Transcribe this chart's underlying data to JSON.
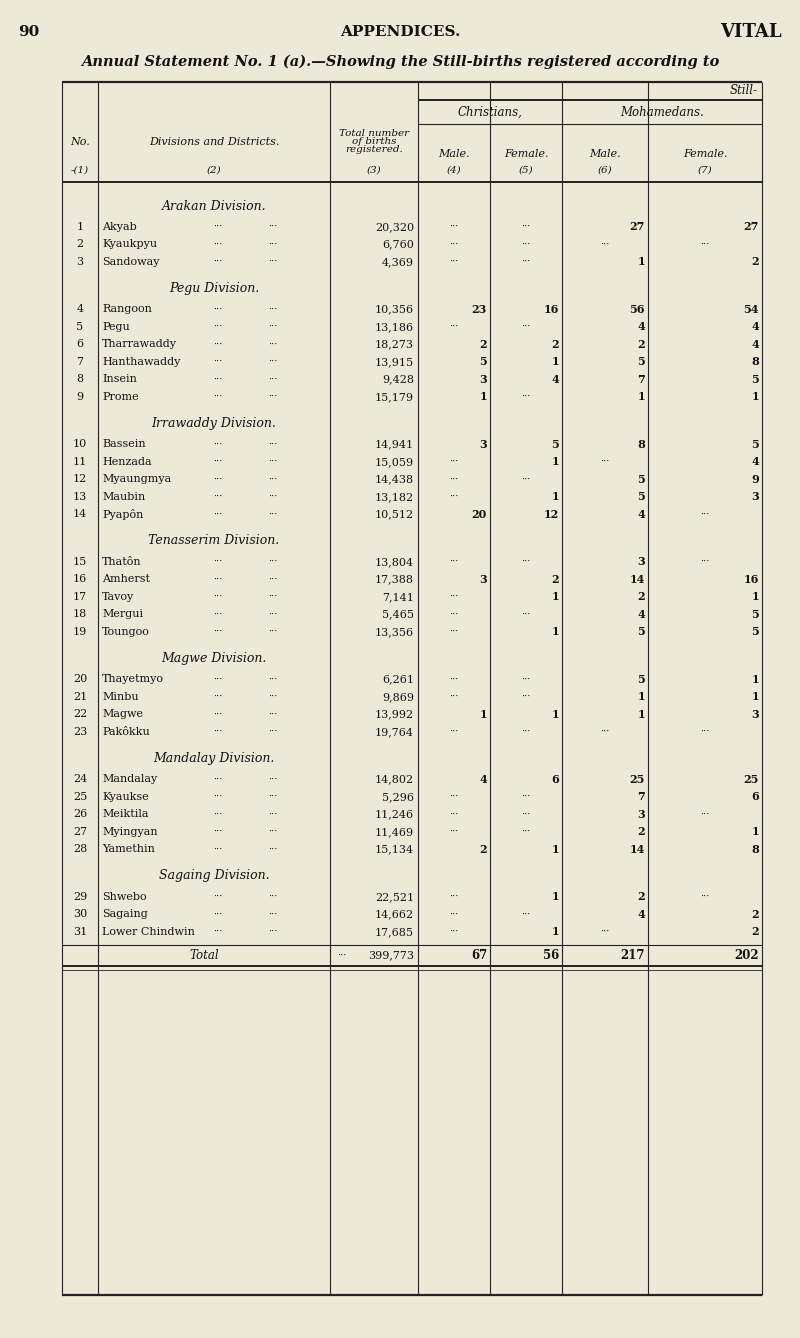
{
  "page_number": "90",
  "center_header": "APPENDICES.",
  "right_header": "VITAL",
  "title": "Annual Statement No. 1 (a).—Showing the Still-births registered according to",
  "bg_color": "#ede8d8",
  "table_bg": "#e8e2cf",
  "divisions": [
    {
      "name": "Arakan Division.",
      "rows": [
        {
          "no": "1",
          "district": "Akyab",
          "dots1": "...",
          "dots2": "...",
          "total": "20,320",
          "c_male": "...",
          "c_female": "...",
          "m_male": "27",
          "m_female": "27"
        },
        {
          "no": "2",
          "district": "Kyaukpyu",
          "dots1": "...",
          "dots2": "...",
          "total": "6,760",
          "c_male": "...",
          "c_female": "...",
          "m_male": "...",
          "m_female": "..."
        },
        {
          "no": "3",
          "district": "Sandoway",
          "dots1": "...",
          "dots2": "...",
          "total": "4,369",
          "c_male": "...",
          "c_female": "...",
          "m_male": "1",
          "m_female": "2"
        }
      ]
    },
    {
      "name": "Pegu Division.",
      "rows": [
        {
          "no": "4",
          "district": "Rangoon",
          "dots1": "...",
          "dots2": "...",
          "total": "10,356",
          "c_male": "23",
          "c_female": "16",
          "m_male": "56",
          "m_female": "54"
        },
        {
          "no": "5",
          "district": "Pegu",
          "dots1": "...",
          "dots2": "...",
          "total": "13,186",
          "c_male": "...",
          "c_female": "...",
          "m_male": "4",
          "m_female": "4"
        },
        {
          "no": "6",
          "district": "Tharrawaddy",
          "dots1": "...",
          "dots2": "...",
          "total": "18,273",
          "c_male": "2",
          "c_female": "2",
          "m_male": "2",
          "m_female": "4"
        },
        {
          "no": "7",
          "district": "Hanthawaddy",
          "dots1": "...",
          "dots2": "...",
          "total": "13,915",
          "c_male": "5",
          "c_female": "1",
          "m_male": "5",
          "m_female": "8"
        },
        {
          "no": "8",
          "district": "Insein",
          "dots1": "...",
          "dots2": "...",
          "total": "9,428",
          "c_male": "3",
          "c_female": "4",
          "m_male": "7",
          "m_female": "5"
        },
        {
          "no": "9",
          "district": "Prome",
          "dots1": "...",
          "dots2": "...",
          "total": "15,179",
          "c_male": "1",
          "c_female": "...",
          "m_male": "1",
          "m_female": "1"
        }
      ]
    },
    {
      "name": "Irrawaddy Division.",
      "rows": [
        {
          "no": "10",
          "district": "Bassein",
          "dots1": "...",
          "dots2": "...",
          "total": "14,941",
          "c_male": "3",
          "c_female": "5",
          "m_male": "8",
          "m_female": "5"
        },
        {
          "no": "11",
          "district": "Henzada",
          "dots1": "...",
          "dots2": "...",
          "total": "15,059",
          "c_male": "...",
          "c_female": "1",
          "m_male": "...",
          "m_female": "4"
        },
        {
          "no": "12",
          "district": "Myaungmya",
          "dots1": "...",
          "dots2": "...",
          "total": "14,438",
          "c_male": "...",
          "c_female": "...",
          "m_male": "5",
          "m_female": "9"
        },
        {
          "no": "13",
          "district": "Maubin",
          "dots1": "...",
          "dots2": "...",
          "total": "13,182",
          "c_male": "...",
          "c_female": "1",
          "m_male": "5",
          "m_female": "3"
        },
        {
          "no": "14",
          "district": "Pyapôn",
          "dots1": "...",
          "dots2": "...",
          "total": "10,512",
          "c_male": "20",
          "c_female": "12",
          "m_male": "4",
          "m_female": "..."
        }
      ]
    },
    {
      "name": "Tenasserim Division.",
      "rows": [
        {
          "no": "15",
          "district": "Thatôn",
          "dots1": "...",
          "dots2": "...",
          "total": "13,804",
          "c_male": "...",
          "c_female": "...",
          "m_male": "3",
          "m_female": "..."
        },
        {
          "no": "16",
          "district": "Amherst",
          "dots1": "...",
          "dots2": "...",
          "total": "17,388",
          "c_male": "3",
          "c_female": "2",
          "m_male": "14",
          "m_female": "16"
        },
        {
          "no": "17",
          "district": "Tavoy",
          "dots1": "...",
          "dots2": "...",
          "total": "7,141",
          "c_male": "...",
          "c_female": "1",
          "m_male": "2",
          "m_female": "1"
        },
        {
          "no": "18",
          "district": "Mergui",
          "dots1": "...",
          "dots2": "...",
          "total": "5,465",
          "c_male": "...",
          "c_female": "...",
          "m_male": "4",
          "m_female": "5"
        },
        {
          "no": "19",
          "district": "Toungoo",
          "dots1": "...",
          "dots2": "...",
          "total": "13,356",
          "c_male": "...",
          "c_female": "1",
          "m_male": "5",
          "m_female": "5"
        }
      ]
    },
    {
      "name": "Magwe Division.",
      "rows": [
        {
          "no": "20",
          "district": "Thayetmyo",
          "dots1": "...",
          "dots2": "...",
          "total": "6,261",
          "c_male": "...",
          "c_female": "...",
          "m_male": "5",
          "m_female": "1"
        },
        {
          "no": "21",
          "district": "Minbu",
          "dots1": "...",
          "dots2": "...",
          "total": "9,869",
          "c_male": "...",
          "c_female": "...",
          "m_male": "1",
          "m_female": "1"
        },
        {
          "no": "22",
          "district": "Magwe",
          "dots1": "...",
          "dots2": "...",
          "total": "13,992",
          "c_male": "1",
          "c_female": "1",
          "m_male": "1",
          "m_female": "3"
        },
        {
          "no": "23",
          "district": "Pakôkku",
          "dots1": "...",
          "dots2": "...",
          "total": "19,764",
          "c_male": "...",
          "c_female": "...",
          "m_male": "...",
          "m_female": "..."
        }
      ]
    },
    {
      "name": "Mandalay Division.",
      "rows": [
        {
          "no": "24",
          "district": "Mandalay",
          "dots1": "...",
          "dots2": "...",
          "total": "14,802",
          "c_male": "4",
          "c_female": "6",
          "m_male": "25",
          "m_female": "25"
        },
        {
          "no": "25",
          "district": "Kyaukse",
          "dots1": "...",
          "dots2": "...",
          "total": "5,296",
          "c_male": "...",
          "c_female": "...",
          "m_male": "7",
          "m_female": "6"
        },
        {
          "no": "26",
          "district": "Meiktila",
          "dots1": "...",
          "dots2": "...",
          "total": "11,246",
          "c_male": "...",
          "c_female": "...",
          "m_male": "3",
          "m_female": "..."
        },
        {
          "no": "27",
          "district": "Myingyan",
          "dots1": "...",
          "dots2": "...",
          "total": "11,469",
          "c_male": "...",
          "c_female": "...",
          "m_male": "2",
          "m_female": "1"
        },
        {
          "no": "28",
          "district": "Yamethin",
          "dots1": "...",
          "dots2": "...",
          "total": "15,134",
          "c_male": "2",
          "c_female": "1",
          "m_male": "14",
          "m_female": "8"
        }
      ]
    },
    {
      "name": "Sagaing Division.",
      "rows": [
        {
          "no": "29",
          "district": "Shwebo",
          "dots1": "...",
          "dots2": "...",
          "total": "22,521",
          "c_male": "...",
          "c_female": "1",
          "m_male": "2",
          "m_female": "..."
        },
        {
          "no": "30",
          "district": "Sagaing",
          "dots1": "...",
          "dots2": "...",
          "total": "14,662",
          "c_male": "...",
          "c_female": "...",
          "m_male": "4",
          "m_female": "2"
        },
        {
          "no": "31",
          "district": "Lower Chindwin",
          "dots1": "...",
          "dots2": "...",
          "total": "17,685",
          "c_male": "...",
          "c_female": "1",
          "m_male": "...",
          "m_female": "2"
        }
      ]
    }
  ],
  "total_row": {
    "total": "399,773",
    "c_male": "67",
    "c_female": "56",
    "m_male": "217",
    "m_female": "202"
  }
}
